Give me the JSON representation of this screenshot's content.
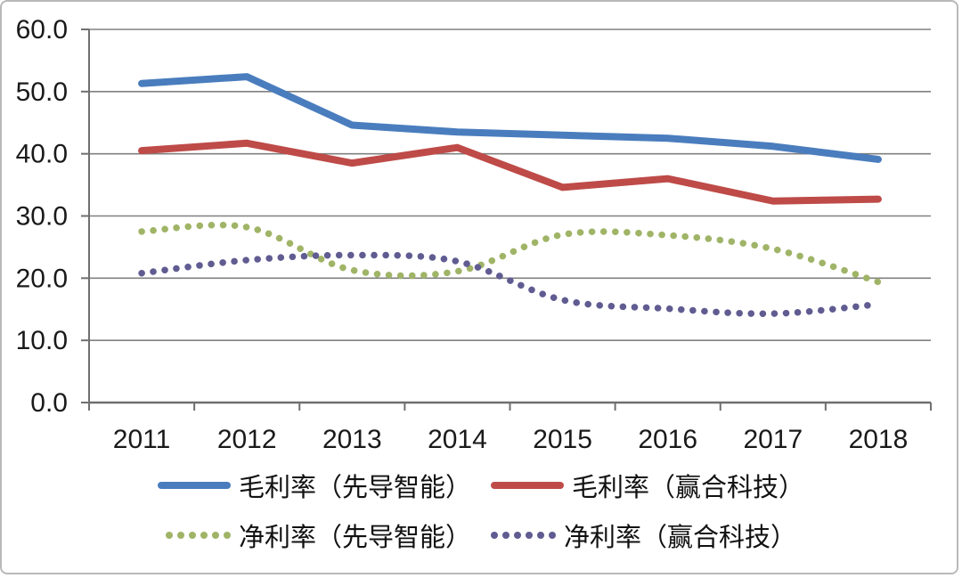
{
  "chart_data": {
    "type": "line",
    "title": "",
    "xlabel": "",
    "ylabel": "",
    "categories": [
      "2011",
      "2012",
      "2013",
      "2014",
      "2015",
      "2016",
      "2017",
      "2018"
    ],
    "series": [
      {
        "name": "毛利率（先导智能）",
        "values": [
          51.3,
          52.4,
          44.6,
          43.5,
          43.0,
          42.5,
          41.2,
          39.1
        ],
        "color": "#4A7DBD",
        "style": "solid"
      },
      {
        "name": "毛利率（赢合科技）",
        "values": [
          40.5,
          41.7,
          38.5,
          41.0,
          34.6,
          36.0,
          32.4,
          32.7
        ],
        "color": "#BE4B48",
        "style": "solid"
      },
      {
        "name": "净利率（先导智能）",
        "values": [
          27.5,
          28.2,
          21.3,
          21.1,
          27.0,
          26.9,
          24.7,
          19.4
        ],
        "color": "#A0B467",
        "style": "dotted"
      },
      {
        "name": "净利率（赢合科技）",
        "values": [
          20.8,
          22.9,
          23.7,
          22.7,
          16.5,
          15.1,
          14.3,
          15.8
        ],
        "color": "#605C91",
        "style": "dotted"
      }
    ],
    "ylim": [
      0,
      60
    ],
    "ytick_step": 10,
    "ytick_labels": [
      "0.0",
      "10.0",
      "20.0",
      "30.0",
      "40.0",
      "50.0",
      "60.0"
    ],
    "grid": "horizontal-only",
    "legend_position": "bottom",
    "colors": {
      "gridline": "#808080",
      "axis": "#6f6f6f",
      "text": "#1a1a1a",
      "background": "#ffffff",
      "border": "#b9b9b9"
    }
  }
}
